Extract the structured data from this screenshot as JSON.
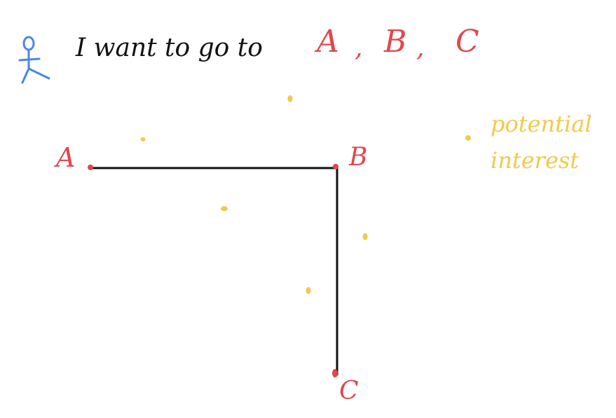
{
  "header": {
    "sentence": "I want to go to",
    "destinations": [
      "A",
      "B",
      "C"
    ]
  },
  "points": {
    "a_label": "A",
    "b_label": "B",
    "c_label": "C"
  },
  "legend": {
    "line1": "potential",
    "line2": "interest"
  },
  "colors": {
    "person": "#4a86e8",
    "text": "#111111",
    "stop": "#e0474c",
    "route": "#111111",
    "interest": "#f2c94c"
  }
}
